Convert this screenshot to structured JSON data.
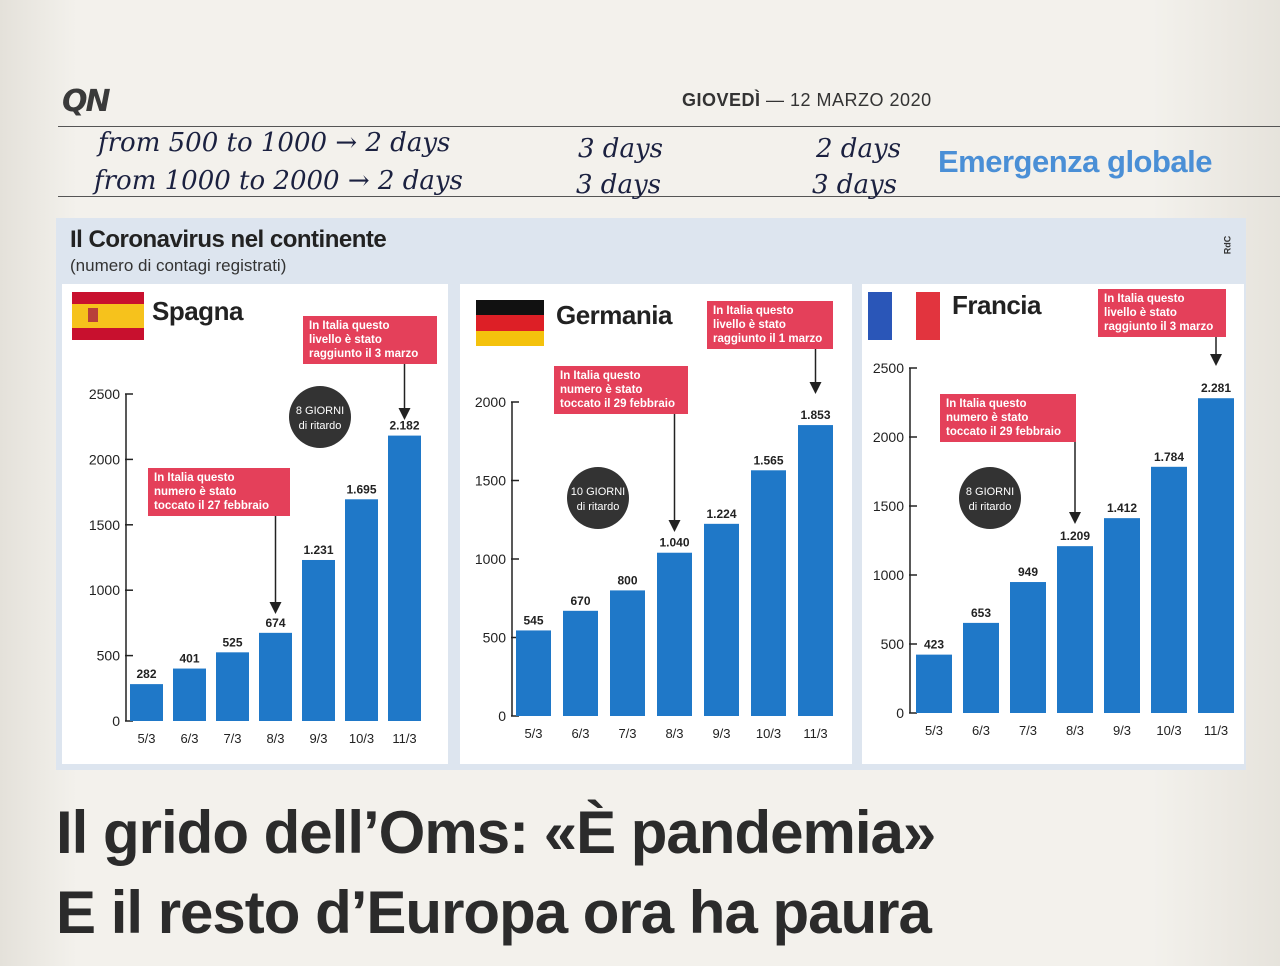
{
  "masthead": {
    "logo": "QN",
    "weekday": "GIOVEDÌ",
    "date": "— 12 MARZO 2020",
    "section": "Emergenza globale"
  },
  "handwriting": {
    "line1": "from 500 to 1000 → 2 days",
    "line2": "from 1000 to 2000 → 2 days",
    "col2_line1": "3 days",
    "col2_line2": "3 days",
    "col3_line1": "2 days",
    "col3_line2": "3 days"
  },
  "infographic": {
    "title": "Il Coronavirus nel continente",
    "subtitle": "(numero di contagi registrati)",
    "credit": "RdC"
  },
  "colors": {
    "bar": "#1f78c8",
    "callout": "#e4405a",
    "badge": "#333333",
    "panel": "#dde5ef"
  },
  "chart_data": [
    {
      "type": "bar",
      "title": "Spagna",
      "flag": "spain-flag-icon",
      "categories": [
        "5/3",
        "6/3",
        "7/3",
        "8/3",
        "9/3",
        "10/3",
        "11/3"
      ],
      "values": [
        282,
        401,
        525,
        674,
        1231,
        1695,
        2182
      ],
      "value_labels": [
        "282",
        "401",
        "525",
        "674",
        "1.231",
        "1.695",
        "2.182"
      ],
      "ylim": [
        0,
        2500
      ],
      "yticks": [
        0,
        500,
        1000,
        1500,
        2000,
        2500
      ],
      "annotations": [
        {
          "lines": [
            "In Italia questo",
            "livello è stato",
            "raggiunto il 3 marzo"
          ],
          "points_to": "11/3"
        },
        {
          "lines": [
            "In Italia questo",
            "numero è stato",
            "toccato  il 27 febbraio"
          ],
          "points_to": "8/3"
        }
      ],
      "delay_badge": {
        "line1": "8 GIORNI",
        "line2": "di ritardo"
      }
    },
    {
      "type": "bar",
      "title": "Germania",
      "flag": "germany-flag-icon",
      "categories": [
        "5/3",
        "6/3",
        "7/3",
        "8/3",
        "9/3",
        "10/3",
        "11/3"
      ],
      "values": [
        545,
        670,
        800,
        1040,
        1224,
        1565,
        1853
      ],
      "value_labels": [
        "545",
        "670",
        "800",
        "1.040",
        "1.224",
        "1.565",
        "1.853"
      ],
      "ylim": [
        0,
        2000
      ],
      "yticks": [
        0,
        500,
        1000,
        1500,
        2000
      ],
      "annotations": [
        {
          "lines": [
            "In Italia questo",
            "livello è stato",
            "raggiunto il 1 marzo"
          ],
          "points_to": "11/3"
        },
        {
          "lines": [
            "In Italia questo",
            "numero è stato",
            "toccato  il 29 febbraio"
          ],
          "points_to": "8/3"
        }
      ],
      "delay_badge": {
        "line1": "10 GIORNI",
        "line2": "di ritardo"
      }
    },
    {
      "type": "bar",
      "title": "Francia",
      "flag": "france-flag-icon",
      "categories": [
        "5/3",
        "6/3",
        "7/3",
        "8/3",
        "9/3",
        "10/3",
        "11/3"
      ],
      "values": [
        423,
        653,
        949,
        1209,
        1412,
        1784,
        2281
      ],
      "value_labels": [
        "423",
        "653",
        "949",
        "1.209",
        "1.412",
        "1.784",
        "2.281"
      ],
      "ylim": [
        0,
        2500
      ],
      "yticks": [
        0,
        500,
        1000,
        1500,
        2000,
        2500
      ],
      "annotations": [
        {
          "lines": [
            "In Italia questo",
            "livello è stato",
            "raggiunto il  3 marzo"
          ],
          "points_to": "11/3"
        },
        {
          "lines": [
            "In Italia questo",
            "numero è stato",
            "toccato  il 29 febbraio"
          ],
          "points_to": "8/3"
        }
      ],
      "delay_badge": {
        "line1": "8 GIORNI",
        "line2": "di ritardo"
      }
    }
  ],
  "headline": {
    "line1": "Il grido dell’Oms: «È pandemia»",
    "line2": "E il resto d’Europa ora ha paura"
  }
}
